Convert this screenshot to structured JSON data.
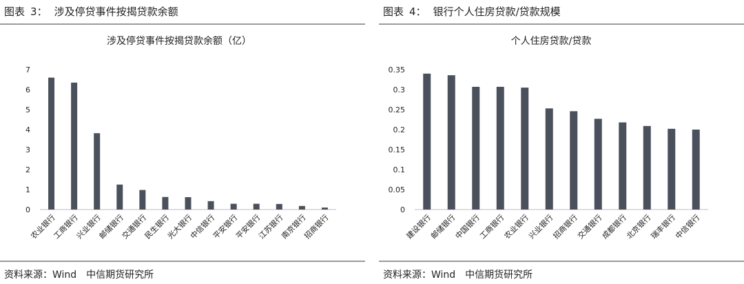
{
  "charts": [
    {
      "header": {
        "label": "图表",
        "number": "3：",
        "title": "涉及停贷事件按揭贷款余额"
      },
      "source": "资料来源：Wind　中信期货研究所",
      "chart_data": {
        "type": "bar",
        "title": "涉及停贷事件按揭贷款余额（亿）",
        "categories": [
          "农业银行",
          "工商银行",
          "兴业银行",
          "邮储银行",
          "交通银行",
          "民生银行",
          "光大银行",
          "中信银行",
          "平安银行",
          "平安银行",
          "江苏银行",
          "南京银行",
          "招商银行"
        ],
        "values": [
          6.6,
          6.35,
          3.82,
          1.25,
          0.98,
          0.63,
          0.62,
          0.42,
          0.29,
          0.29,
          0.28,
          0.18,
          0.1
        ],
        "ylim": [
          0,
          7
        ],
        "yticks": [
          "0",
          "1",
          "2",
          "3",
          "4",
          "5",
          "6",
          "7"
        ],
        "bar_color": "#4b515c",
        "grid": false
      }
    },
    {
      "header": {
        "label": "图表",
        "number": "4：",
        "title": "银行个人住房贷款/贷款规模"
      },
      "source": "资料来源：Wind　中信期货研究所",
      "chart_data": {
        "type": "bar",
        "title": "个人住房贷款/贷款",
        "categories": [
          "建设银行",
          "邮储银行",
          "中国银行",
          "工商银行",
          "农业银行",
          "兴业银行",
          "招商银行",
          "交通银行",
          "成都银行",
          "北京银行",
          "瑞丰银行",
          "中信银行"
        ],
        "values": [
          0.34,
          0.336,
          0.307,
          0.307,
          0.305,
          0.253,
          0.246,
          0.227,
          0.218,
          0.209,
          0.202,
          0.2
        ],
        "ylim": [
          0,
          0.35
        ],
        "yticks": [
          "0",
          "0.05",
          "0.1",
          "0.15",
          "0.2",
          "0.25",
          "0.3",
          "0.35"
        ],
        "bar_color": "#4b515c",
        "grid": false
      }
    }
  ]
}
